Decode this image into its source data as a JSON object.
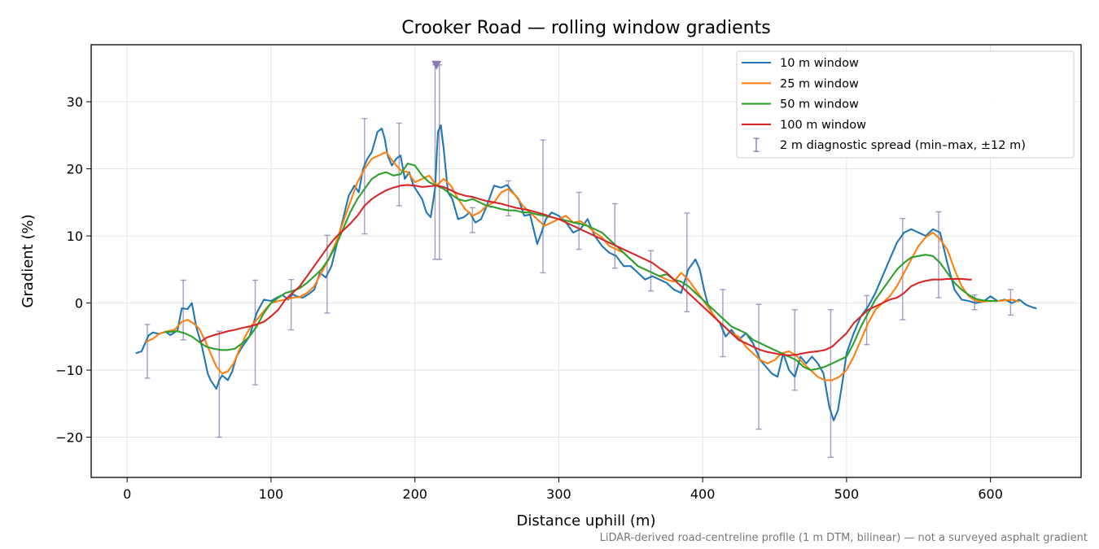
{
  "chart_data": {
    "type": "line",
    "title": "Crooker Road — rolling window gradients",
    "xlabel": "Distance uphill (m)",
    "ylabel": "Gradient (%)",
    "xlim": [
      -25,
      663
    ],
    "ylim": [
      -26,
      38.5
    ],
    "xticks": [
      0,
      100,
      200,
      300,
      400,
      500,
      600
    ],
    "yticks": [
      -20,
      -10,
      0,
      10,
      20,
      30
    ],
    "grid": true,
    "legend_position": "upper-right",
    "footnote": "LiDAR-derived road-centreline profile (1 m DTM, bilinear) — not a surveyed asphalt gradient",
    "series": [
      {
        "name": "10 m window",
        "color": "#1f77b4",
        "x": [
          6,
          10,
          15,
          18,
          22,
          27,
          30,
          35,
          38,
          42,
          45,
          48,
          52,
          56,
          58,
          62,
          64,
          66,
          70,
          73,
          76,
          80,
          85,
          90,
          95,
          100,
          104,
          108,
          112,
          115,
          118,
          122,
          126,
          130,
          134,
          138,
          142,
          146,
          150,
          154,
          158,
          161,
          164,
          167,
          170,
          174,
          177,
          179,
          181,
          184,
          187,
          190,
          193,
          196,
          199,
          202,
          205,
          208,
          211,
          214,
          216,
          218,
          220,
          223,
          226,
          230,
          234,
          238,
          242,
          246,
          250,
          255,
          260,
          264,
          268,
          272,
          276,
          280,
          285,
          288,
          291,
          295,
          300,
          305,
          310,
          315,
          320,
          325,
          330,
          335,
          340,
          345,
          350,
          355,
          360,
          365,
          370,
          375,
          380,
          385,
          390,
          395,
          398,
          401,
          404,
          408,
          412,
          416,
          420,
          425,
          430,
          435,
          440,
          444,
          448,
          452,
          456,
          460,
          464,
          468,
          472,
          476,
          480,
          484,
          488,
          491,
          494,
          497,
          500,
          505,
          510,
          515,
          520,
          525,
          530,
          535,
          540,
          545,
          550,
          555,
          560,
          565,
          570,
          575,
          580,
          585,
          590,
          595,
          600,
          605,
          610,
          615,
          620,
          625,
          630,
          632
        ],
        "y": [
          -7.5,
          -7.2,
          -4.8,
          -4.4,
          -4.6,
          -4.3,
          -4.8,
          -4.1,
          -0.8,
          -0.9,
          0.0,
          -3.5,
          -6.5,
          -10.5,
          -11.5,
          -12.8,
          -11.5,
          -10.8,
          -11.5,
          -10.2,
          -8.0,
          -6.5,
          -5.0,
          -1.5,
          0.5,
          0.3,
          0.8,
          1.2,
          0.5,
          1.3,
          1.0,
          0.8,
          1.3,
          2.0,
          4.5,
          3.8,
          5.5,
          9.0,
          12.5,
          16.0,
          17.5,
          16.5,
          20.0,
          21.5,
          22.5,
          25.5,
          26.0,
          24.5,
          22.0,
          20.5,
          21.5,
          22.0,
          18.5,
          19.5,
          17.5,
          16.5,
          15.5,
          13.5,
          12.8,
          17.0,
          25.5,
          26.5,
          23.0,
          16.5,
          15.5,
          12.5,
          12.8,
          13.5,
          12.0,
          12.5,
          14.5,
          17.5,
          17.2,
          17.6,
          16.5,
          15.5,
          13.0,
          13.2,
          8.8,
          10.5,
          12.5,
          13.5,
          13.0,
          12.0,
          10.5,
          11.0,
          12.5,
          10.0,
          8.5,
          7.5,
          7.0,
          5.5,
          5.5,
          4.5,
          3.5,
          4.0,
          3.5,
          3.0,
          2.0,
          1.5,
          5.0,
          6.5,
          5.0,
          2.0,
          -0.5,
          -2.0,
          -3.0,
          -5.0,
          -4.0,
          -5.5,
          -4.5,
          -6.0,
          -8.5,
          -9.5,
          -10.5,
          -11.0,
          -7.5,
          -10.0,
          -11.0,
          -8.0,
          -9.0,
          -8.0,
          -9.0,
          -10.5,
          -15.5,
          -17.5,
          -16.0,
          -12.0,
          -7.5,
          -4.5,
          -2.0,
          -0.5,
          1.5,
          4.0,
          6.5,
          9.0,
          10.5,
          11.0,
          10.5,
          10.0,
          11.0,
          10.5,
          6.0,
          2.0,
          0.5,
          0.3,
          0.0,
          0.2,
          1.0,
          0.3,
          0.5,
          0.0,
          0.5,
          -0.3,
          -0.7,
          -0.8
        ]
      },
      {
        "name": "25 m window",
        "color": "#ff7f0e",
        "x": [
          13,
          18,
          23,
          28,
          33,
          38,
          42,
          46,
          50,
          54,
          58,
          62,
          66,
          70,
          74,
          78,
          82,
          86,
          90,
          95,
          100,
          105,
          110,
          115,
          120,
          125,
          130,
          135,
          140,
          145,
          150,
          155,
          160,
          165,
          170,
          175,
          180,
          185,
          190,
          195,
          200,
          205,
          210,
          215,
          220,
          225,
          230,
          235,
          240,
          245,
          250,
          255,
          260,
          265,
          270,
          275,
          280,
          285,
          290,
          295,
          300,
          305,
          310,
          315,
          320,
          325,
          330,
          335,
          340,
          345,
          350,
          355,
          360,
          365,
          370,
          375,
          380,
          385,
          390,
          395,
          400,
          405,
          410,
          415,
          420,
          425,
          430,
          435,
          440,
          445,
          450,
          455,
          460,
          465,
          470,
          475,
          480,
          485,
          490,
          495,
          500,
          505,
          510,
          515,
          520,
          525,
          530,
          535,
          540,
          545,
          550,
          555,
          560,
          565,
          570,
          575,
          580,
          585,
          590,
          595,
          600,
          605,
          610,
          615,
          620
        ],
        "y": [
          -5.8,
          -5.3,
          -4.5,
          -4.2,
          -4.0,
          -2.8,
          -2.5,
          -3.0,
          -3.8,
          -5.5,
          -7.5,
          -9.5,
          -10.5,
          -10.2,
          -9.0,
          -7.0,
          -5.0,
          -3.5,
          -2.5,
          -1.2,
          0.0,
          0.3,
          0.5,
          0.8,
          0.9,
          1.5,
          2.5,
          4.5,
          6.5,
          9.0,
          12.0,
          15.0,
          18.0,
          20.0,
          21.5,
          22.0,
          22.5,
          21.0,
          19.8,
          19.5,
          18.0,
          18.5,
          19.0,
          17.5,
          18.5,
          17.5,
          15.5,
          14.0,
          13.0,
          13.5,
          14.5,
          15.0,
          16.5,
          17.0,
          16.0,
          14.5,
          13.5,
          12.5,
          11.5,
          12.0,
          12.5,
          13.0,
          12.0,
          12.2,
          11.5,
          10.5,
          9.8,
          8.5,
          8.0,
          7.5,
          6.5,
          5.5,
          5.0,
          4.5,
          4.0,
          3.5,
          3.2,
          4.5,
          3.5,
          2.0,
          0.5,
          -1.0,
          -2.5,
          -3.5,
          -4.5,
          -5.0,
          -6.5,
          -7.5,
          -8.5,
          -9.0,
          -8.5,
          -7.5,
          -7.2,
          -7.8,
          -9.0,
          -10.0,
          -11.0,
          -11.5,
          -11.5,
          -11.0,
          -10.0,
          -8.0,
          -5.5,
          -3.0,
          -1.0,
          0.0,
          1.0,
          2.5,
          4.5,
          6.5,
          8.5,
          9.8,
          10.5,
          9.5,
          8.0,
          5.0,
          2.5,
          1.0,
          0.3,
          0.2,
          0.3,
          0.3,
          0.4,
          0.5,
          0.2
        ]
      },
      {
        "name": "50 m window",
        "color": "#2ca02c",
        "x": [
          26,
          30,
          35,
          40,
          45,
          50,
          55,
          60,
          65,
          70,
          75,
          80,
          85,
          90,
          95,
          100,
          105,
          110,
          115,
          120,
          125,
          130,
          135,
          140,
          145,
          150,
          155,
          160,
          165,
          170,
          175,
          180,
          185,
          190,
          195,
          200,
          205,
          210,
          215,
          220,
          225,
          230,
          235,
          240,
          245,
          250,
          255,
          260,
          265,
          270,
          275,
          280,
          285,
          290,
          295,
          300,
          305,
          310,
          315,
          320,
          325,
          330,
          335,
          340,
          345,
          350,
          355,
          360,
          365,
          370,
          375,
          380,
          385,
          390,
          395,
          400,
          405,
          410,
          415,
          420,
          425,
          430,
          435,
          440,
          445,
          450,
          455,
          460,
          465,
          470,
          475,
          480,
          485,
          490,
          495,
          500,
          505,
          510,
          515,
          520,
          525,
          530,
          535,
          540,
          545,
          550,
          555,
          560,
          565,
          570,
          575,
          580,
          585,
          590,
          595,
          600,
          605
        ],
        "y": [
          -4.3,
          -4.3,
          -4.2,
          -4.5,
          -5.0,
          -5.8,
          -6.5,
          -6.8,
          -7.0,
          -7.0,
          -6.8,
          -6.0,
          -5.0,
          -3.5,
          -1.5,
          0.0,
          0.8,
          1.5,
          1.8,
          2.2,
          3.0,
          4.0,
          5.0,
          6.5,
          8.5,
          11.0,
          13.5,
          15.5,
          17.0,
          18.5,
          19.2,
          19.5,
          19.0,
          19.2,
          20.8,
          20.5,
          19.0,
          18.0,
          17.5,
          17.0,
          16.2,
          15.5,
          15.2,
          15.5,
          15.0,
          14.5,
          14.3,
          14.0,
          13.8,
          13.8,
          13.5,
          13.5,
          13.2,
          13.0,
          12.8,
          12.5,
          12.3,
          12.0,
          11.8,
          11.5,
          11.0,
          10.5,
          9.5,
          8.5,
          7.5,
          6.5,
          5.5,
          5.0,
          4.5,
          4.0,
          4.3,
          3.5,
          3.2,
          2.5,
          1.5,
          0.5,
          -0.5,
          -1.5,
          -2.5,
          -3.5,
          -4.0,
          -4.5,
          -5.5,
          -6.0,
          -6.5,
          -7.0,
          -7.5,
          -8.0,
          -8.5,
          -9.5,
          -10.0,
          -9.8,
          -9.5,
          -9.0,
          -8.5,
          -8.0,
          -6.0,
          -3.5,
          -1.5,
          0.5,
          2.0,
          3.5,
          5.0,
          6.0,
          6.8,
          7.0,
          7.2,
          7.0,
          6.0,
          4.5,
          3.0,
          2.0,
          1.2,
          0.6,
          0.4,
          0.3,
          0.3
        ]
      },
      {
        "name": "100 m window",
        "color": "#d62728",
        "x": [
          51,
          55,
          60,
          65,
          70,
          75,
          80,
          85,
          90,
          95,
          100,
          105,
          110,
          115,
          120,
          125,
          130,
          135,
          140,
          145,
          150,
          155,
          160,
          165,
          170,
          175,
          180,
          185,
          190,
          195,
          200,
          205,
          210,
          215,
          220,
          225,
          230,
          235,
          240,
          245,
          250,
          255,
          260,
          265,
          270,
          275,
          280,
          285,
          290,
          295,
          300,
          305,
          310,
          315,
          320,
          325,
          330,
          335,
          340,
          345,
          350,
          355,
          360,
          365,
          370,
          375,
          380,
          385,
          390,
          395,
          400,
          405,
          410,
          415,
          420,
          425,
          430,
          435,
          440,
          445,
          450,
          455,
          460,
          465,
          470,
          475,
          480,
          485,
          490,
          495,
          500,
          505,
          510,
          515,
          520,
          525,
          530,
          535,
          540,
          545,
          550,
          555,
          560,
          565,
          570,
          575,
          580,
          585,
          587
        ],
        "y": [
          -5.8,
          -5.2,
          -4.8,
          -4.5,
          -4.2,
          -4.0,
          -3.7,
          -3.5,
          -3.2,
          -2.8,
          -2.0,
          -1.0,
          0.5,
          1.5,
          2.5,
          4.0,
          5.5,
          7.0,
          8.5,
          9.8,
          10.8,
          11.8,
          13.0,
          14.5,
          15.5,
          16.2,
          16.8,
          17.2,
          17.5,
          17.6,
          17.5,
          17.3,
          17.4,
          17.5,
          17.3,
          16.8,
          16.3,
          16.0,
          15.8,
          15.5,
          15.2,
          15.0,
          14.8,
          14.5,
          14.2,
          14.0,
          13.8,
          13.5,
          13.2,
          12.8,
          12.5,
          12.0,
          11.5,
          11.0,
          10.5,
          10.0,
          9.5,
          9.0,
          8.5,
          8.0,
          7.5,
          7.0,
          6.5,
          6.0,
          5.2,
          4.5,
          3.5,
          2.5,
          1.5,
          0.5,
          -0.5,
          -1.5,
          -2.5,
          -3.5,
          -4.5,
          -5.5,
          -6.0,
          -6.5,
          -7.0,
          -7.3,
          -7.5,
          -7.7,
          -7.8,
          -7.7,
          -7.5,
          -7.3,
          -7.2,
          -7.0,
          -6.5,
          -5.5,
          -4.5,
          -3.0,
          -2.0,
          -1.0,
          -0.5,
          0.0,
          0.5,
          0.8,
          1.5,
          2.5,
          3.0,
          3.3,
          3.5,
          3.5,
          3.6,
          3.6,
          3.6,
          3.5,
          3.5
        ]
      }
    ],
    "diagnostic_spread": {
      "name": "2 m diagnostic spread (min–max, ±12 m)",
      "color": "#8a7bb0",
      "x": [
        14,
        39,
        64,
        89,
        114,
        139,
        165,
        189,
        214,
        217,
        240,
        265,
        289,
        314,
        339,
        364,
        389,
        414,
        439,
        464,
        489,
        514,
        539,
        564,
        589,
        614
      ],
      "low": [
        -11.2,
        -5.5,
        -20.0,
        -12.2,
        -4.0,
        -1.5,
        10.3,
        14.5,
        6.5,
        6.5,
        10.5,
        13.0,
        4.5,
        8.0,
        5.2,
        1.8,
        -1.3,
        -8.0,
        -18.8,
        -13.0,
        -23.0,
        -6.2,
        -2.5,
        0.8,
        -1.0,
        -1.8
      ],
      "high": [
        -3.2,
        3.4,
        -4.2,
        3.4,
        3.5,
        10.1,
        27.5,
        26.8,
        35.5,
        35.5,
        14.2,
        18.2,
        24.3,
        16.5,
        14.8,
        7.8,
        13.4,
        2.0,
        -0.2,
        -1.0,
        -1.0,
        1.1,
        12.6,
        13.6,
        1.2,
        2.0
      ],
      "marker": {
        "x": 215,
        "y": 35.5,
        "symbol": "triangle-down"
      }
    }
  }
}
